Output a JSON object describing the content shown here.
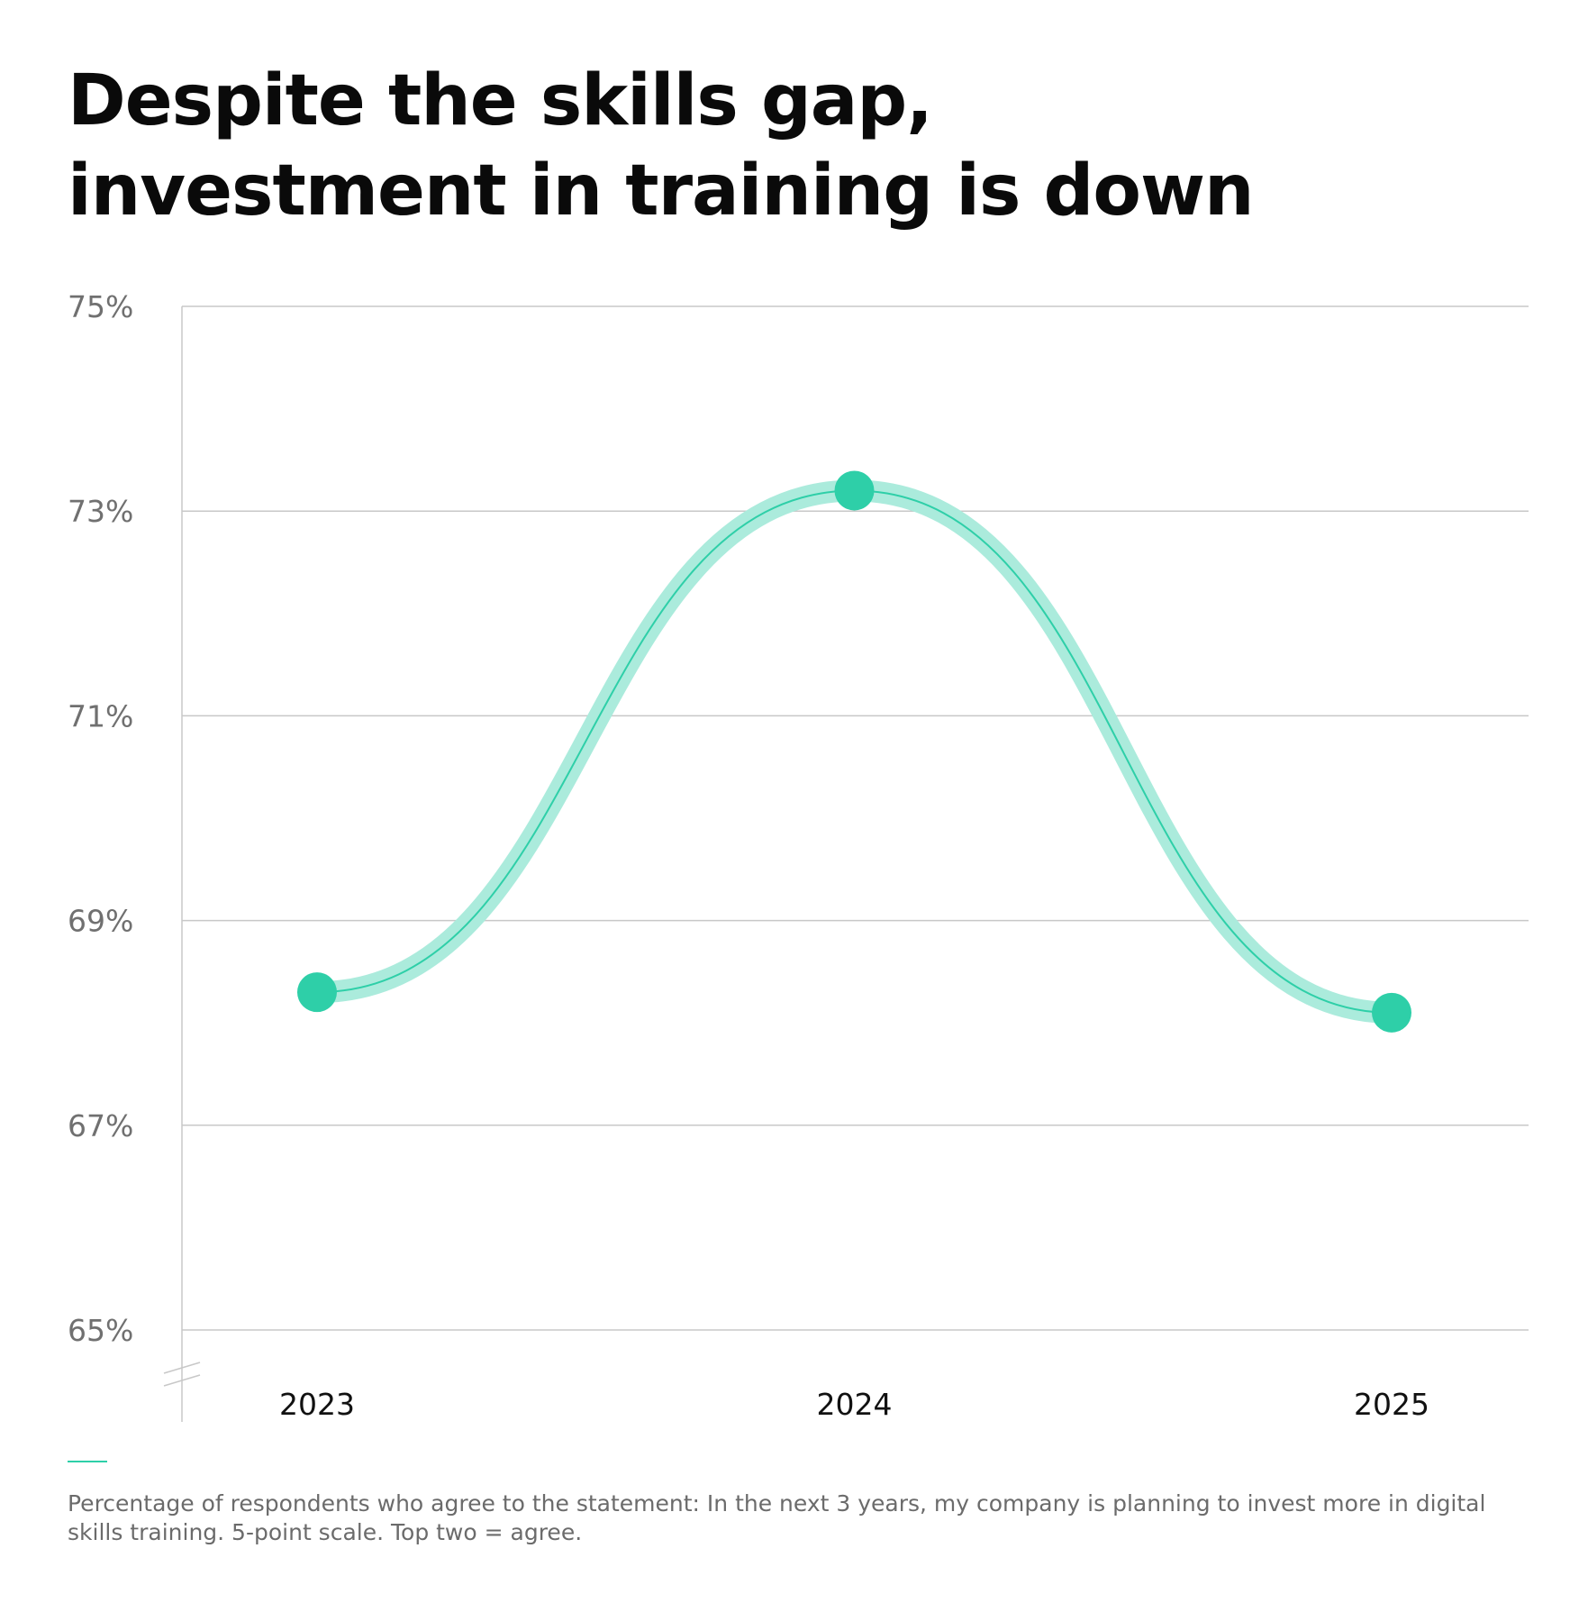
{
  "title_lines": [
    "Despite the skills gap,",
    "investment in training is down"
  ],
  "footnote": "Percentage of respondents who agree to the statement: In the next 3 years, my company is planning to invest more in digital skills training. 5-point scale. Top two = agree.",
  "colors": {
    "accent": "#2ecfa8",
    "band": "#abebdc",
    "grid": "#c8c8c8",
    "tick_text": "#707070",
    "category_text": "#111111"
  },
  "chart_data": {
    "type": "line",
    "title": "Despite the skills gap, investment in training is down",
    "xlabel": "",
    "ylabel": "",
    "categories": [
      "2023",
      "2024",
      "2025"
    ],
    "series": [
      {
        "values": [
          68.3,
          73.2,
          68.1
        ]
      }
    ],
    "ylim": [
      65,
      75
    ],
    "yticks": [
      65,
      67,
      69,
      71,
      73,
      75
    ],
    "ytick_labels": [
      "65%",
      "67%",
      "69%",
      "71%",
      "73%",
      "75%"
    ],
    "grid": true,
    "smooth": true,
    "axis_break": true,
    "legend": "none"
  }
}
